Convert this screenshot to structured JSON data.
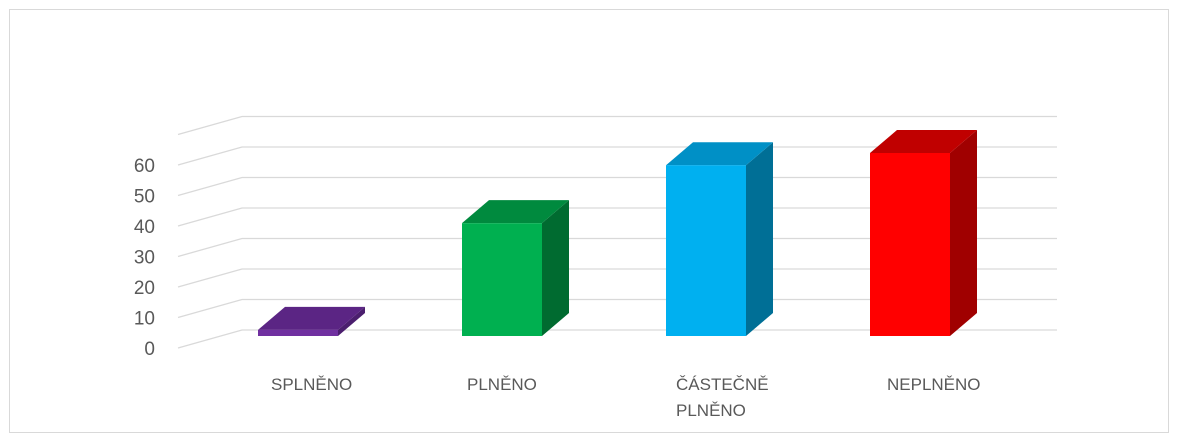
{
  "chart_data": {
    "type": "bar",
    "style": "3d-column",
    "title": "",
    "xlabel": "",
    "ylabel": "",
    "categories": [
      [
        "SPLNĚNO"
      ],
      [
        "PLNĚNO"
      ],
      [
        "ČÁSTEČNĚ",
        "PLNĚNO"
      ],
      [
        "NEPLNĚNO"
      ]
    ],
    "values": [
      2,
      37,
      56,
      60
    ],
    "ylim": [
      0,
      60
    ],
    "yticks": [
      "0",
      "10",
      "20",
      "30",
      "40",
      "50",
      "60"
    ],
    "grid": true,
    "legend": "none",
    "colors": {
      "front": [
        "#7030a0",
        "#00b050",
        "#00b0f0",
        "#ff0000"
      ],
      "top": [
        "#5b2584",
        "#008a3e",
        "#0090c6",
        "#c00000"
      ],
      "side": [
        "#4b1e6e",
        "#006b30",
        "#006f96",
        "#a00000"
      ],
      "grid": "#d9d9d9",
      "text": "#595959"
    }
  }
}
